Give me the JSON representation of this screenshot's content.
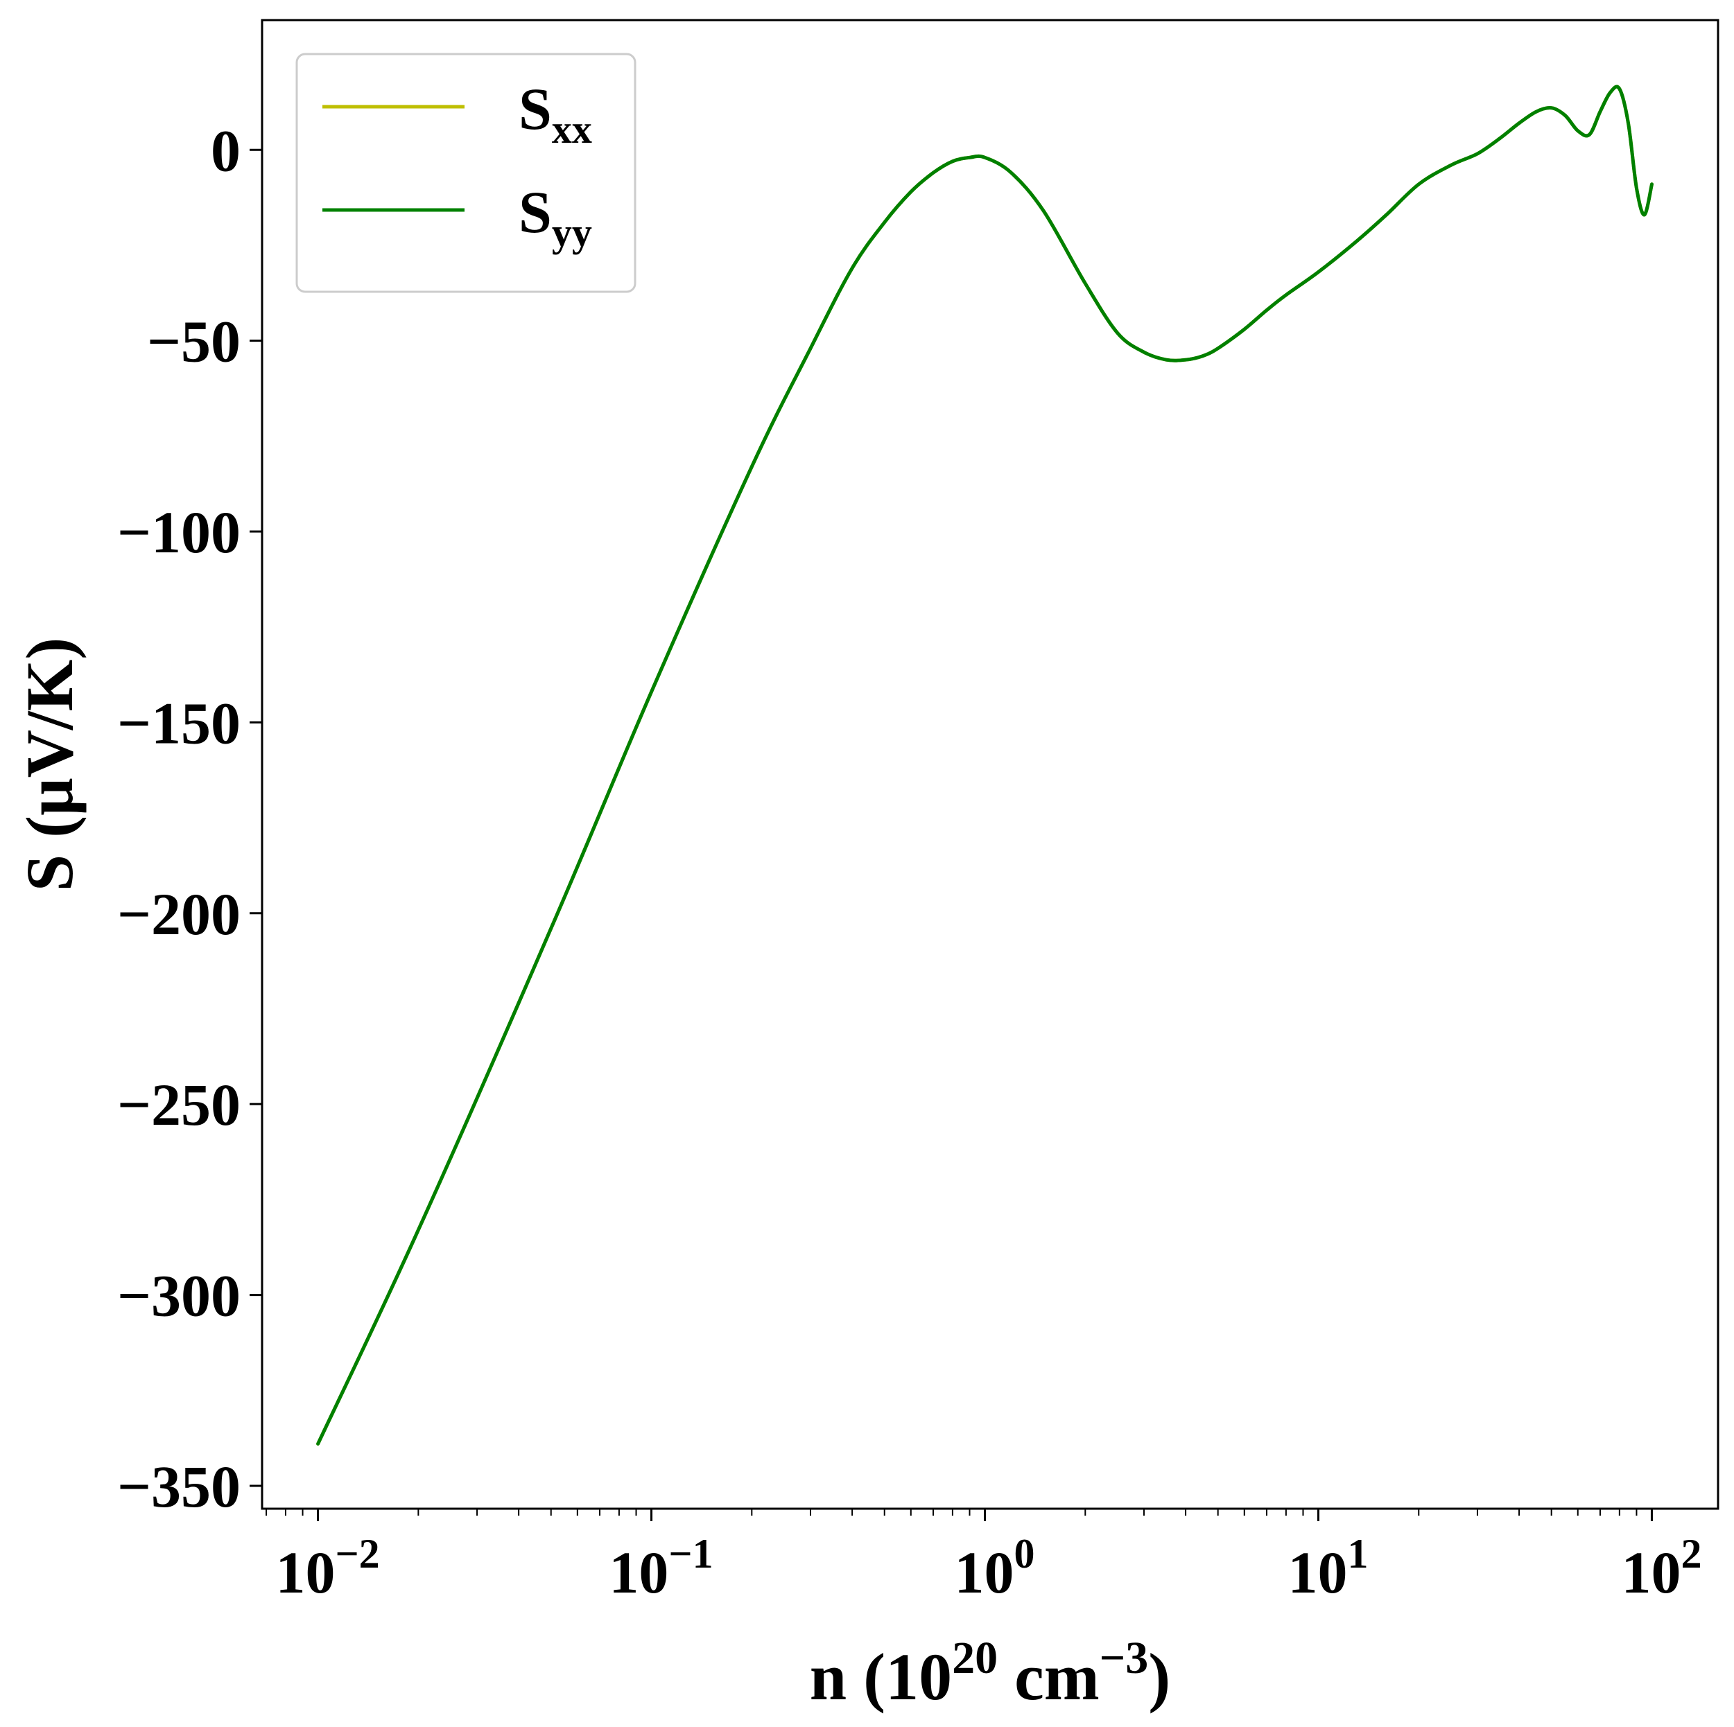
{
  "chart_data": {
    "type": "line",
    "xlabel": {
      "text": "n (10",
      "sup1": "20",
      "mid": " cm",
      "sup2": "−3",
      "end": ")"
    },
    "ylabel": "S (μV/K)",
    "xscale": "log",
    "xlim": [
      0.0068,
      158
    ],
    "ylim": [
      -356,
      34
    ],
    "x_ticks": [
      {
        "value": 0.01,
        "base": "10",
        "exp": "−2"
      },
      {
        "value": 0.1,
        "base": "10",
        "exp": "−1"
      },
      {
        "value": 1,
        "base": "10",
        "exp": "0"
      },
      {
        "value": 10,
        "base": "10",
        "exp": "1"
      },
      {
        "value": 100,
        "base": "10",
        "exp": "2"
      }
    ],
    "y_ticks": [
      {
        "value": 0,
        "label": "0"
      },
      {
        "value": -50,
        "label": "−50"
      },
      {
        "value": -100,
        "label": "−100"
      },
      {
        "value": -150,
        "label": "−150"
      },
      {
        "value": -200,
        "label": "−200"
      },
      {
        "value": -250,
        "label": "−250"
      },
      {
        "value": -300,
        "label": "−300"
      },
      {
        "value": -350,
        "label": "−350"
      }
    ],
    "grid": false,
    "legend": {
      "placement": "upper-left"
    },
    "series": [
      {
        "name": "S",
        "subscript": "xx",
        "color": "#bfbf00",
        "x": [
          0.01,
          0.02,
          0.05,
          0.1,
          0.2,
          0.3,
          0.4,
          0.5,
          0.6,
          0.7,
          0.8,
          0.9,
          1.0,
          1.2,
          1.5,
          2.0,
          2.5,
          3.0,
          3.5,
          4.0,
          4.5,
          5.0,
          6.0,
          7.0,
          8.0,
          10,
          13,
          16,
          20,
          25,
          30,
          35,
          40,
          45,
          50,
          55,
          60,
          65,
          70,
          75,
          80,
          85,
          90,
          95,
          100
        ],
        "y": [
          -339,
          -283,
          -204,
          -142,
          -83,
          -52,
          -31,
          -19,
          -11,
          -6,
          -3,
          -2,
          -2,
          -6,
          -16,
          -35,
          -48,
          -53,
          -55,
          -55,
          -54,
          -52,
          -47,
          -42,
          -38,
          -32,
          -24,
          -17,
          -9,
          -4,
          -1,
          3,
          7,
          10,
          11,
          9,
          5,
          4,
          10,
          15,
          16,
          7,
          -10,
          -17,
          -9
        ]
      },
      {
        "name": "S",
        "subscript": "yy",
        "color": "#008000",
        "x": [
          0.01,
          0.02,
          0.05,
          0.1,
          0.2,
          0.3,
          0.4,
          0.5,
          0.6,
          0.7,
          0.8,
          0.9,
          1.0,
          1.2,
          1.5,
          2.0,
          2.5,
          3.0,
          3.5,
          4.0,
          4.5,
          5.0,
          6.0,
          7.0,
          8.0,
          10,
          13,
          16,
          20,
          25,
          30,
          35,
          40,
          45,
          50,
          55,
          60,
          65,
          70,
          75,
          80,
          85,
          90,
          95,
          100
        ],
        "y": [
          -339,
          -283,
          -204,
          -142,
          -83,
          -52,
          -31,
          -19,
          -11,
          -6,
          -3,
          -2,
          -2,
          -6,
          -16,
          -35,
          -48,
          -53,
          -55,
          -55,
          -54,
          -52,
          -47,
          -42,
          -38,
          -32,
          -24,
          -17,
          -9,
          -4,
          -1,
          3,
          7,
          10,
          11,
          9,
          5,
          4,
          10,
          15,
          16,
          7,
          -10,
          -17,
          -9
        ]
      }
    ]
  }
}
